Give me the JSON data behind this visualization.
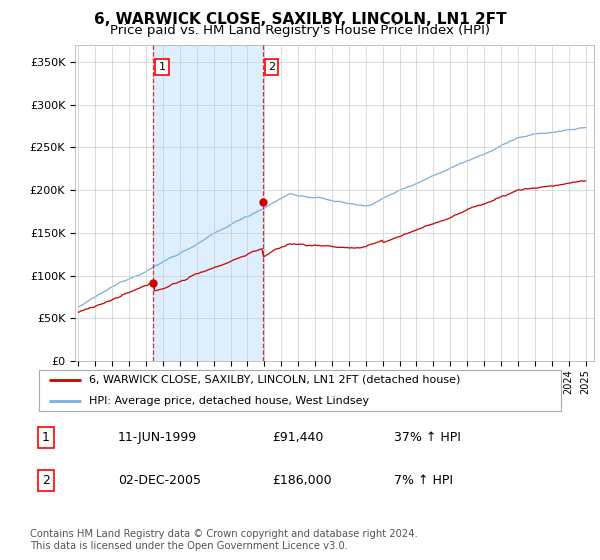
{
  "title": "6, WARWICK CLOSE, SAXILBY, LINCOLN, LN1 2FT",
  "subtitle": "Price paid vs. HM Land Registry's House Price Index (HPI)",
  "ylim": [
    0,
    370000
  ],
  "yticks": [
    0,
    50000,
    100000,
    150000,
    200000,
    250000,
    300000,
    350000
  ],
  "ytick_labels": [
    "£0",
    "£50K",
    "£100K",
    "£150K",
    "£200K",
    "£250K",
    "£300K",
    "£350K"
  ],
  "background_color": "#ffffff",
  "plot_bg_color": "#ffffff",
  "grid_color": "#cccccc",
  "sale1_date": 1999.44,
  "sale1_price": 91440,
  "sale1_label": "1",
  "sale2_date": 2005.92,
  "sale2_price": 186000,
  "sale2_label": "2",
  "shaded_region_color": "#ddeeff",
  "red_line_color": "#cc0000",
  "blue_line_color": "#7aaddd",
  "legend_line1": "6, WARWICK CLOSE, SAXILBY, LINCOLN, LN1 2FT (detached house)",
  "legend_line2": "HPI: Average price, detached house, West Lindsey",
  "table_row1_num": "1",
  "table_row1_date": "11-JUN-1999",
  "table_row1_price": "£91,440",
  "table_row1_hpi": "37% ↑ HPI",
  "table_row2_num": "2",
  "table_row2_date": "02-DEC-2005",
  "table_row2_price": "£186,000",
  "table_row2_hpi": "7% ↑ HPI",
  "footnote": "Contains HM Land Registry data © Crown copyright and database right 2024.\nThis data is licensed under the Open Government Licence v3.0.",
  "title_fontsize": 11,
  "subtitle_fontsize": 9.5,
  "tick_fontsize": 8,
  "xlim_left": 1994.8,
  "xlim_right": 2025.5
}
